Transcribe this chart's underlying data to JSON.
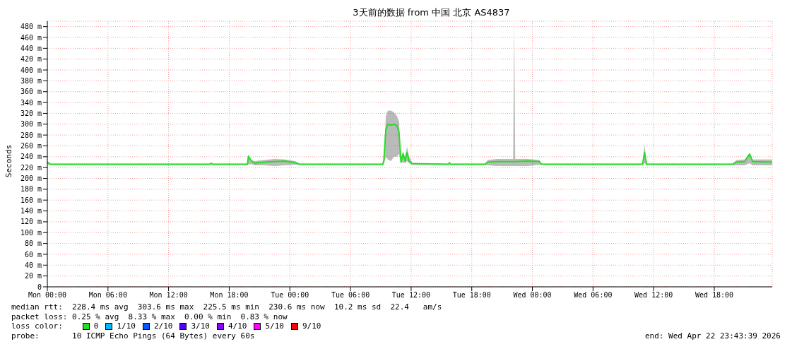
{
  "chart_data": {
    "type": "line",
    "title": "3天前的数据 from 中国 北京 AS4837",
    "ylabel": "Seconds",
    "x": [
      "2026-04-20T00:00",
      "2026-04-20T00:18",
      "2026-04-20T16:06",
      "2026-04-20T16:12",
      "2026-04-20T16:24",
      "2026-04-20T19:48",
      "2026-04-20T19:54",
      "2026-04-20T20:12",
      "2026-04-20T20:30",
      "2026-04-20T21:30",
      "2026-04-20T22:30",
      "2026-04-20T23:30",
      "2026-04-21T00:30",
      "2026-04-21T01:00",
      "2026-04-21T09:12",
      "2026-04-21T09:18",
      "2026-04-21T09:30",
      "2026-04-21T09:42",
      "2026-04-21T10:00",
      "2026-04-21T10:18",
      "2026-04-21T10:36",
      "2026-04-21T10:48",
      "2026-04-21T11:00",
      "2026-04-21T11:12",
      "2026-04-21T11:24",
      "2026-04-21T11:36",
      "2026-04-21T11:48",
      "2026-04-21T12:06",
      "2026-04-21T15:42",
      "2026-04-21T15:48",
      "2026-04-21T15:54",
      "2026-04-21T19:18",
      "2026-04-21T19:36",
      "2026-04-21T20:30",
      "2026-04-21T22:06",
      "2026-04-21T22:12",
      "2026-04-21T22:18",
      "2026-04-21T23:30",
      "2026-04-22T00:42",
      "2026-04-22T00:54",
      "2026-04-22T10:54",
      "2026-04-22T11:06",
      "2026-04-22T11:18",
      "2026-04-22T19:48",
      "2026-04-22T20:12",
      "2026-04-22T21:00",
      "2026-04-22T21:30",
      "2026-04-22T21:48",
      "2026-04-22T23:43"
    ],
    "series": [
      {
        "color": "#22e022",
        "values": [
          230,
          226,
          226,
          228,
          226,
          226,
          241,
          232,
          228,
          230,
          231,
          232,
          229,
          226,
          226,
          233,
          290,
          300,
          298,
          300,
          297,
          285,
          230,
          245,
          232,
          248,
          232,
          227,
          226,
          229,
          226,
          226,
          230,
          231,
          231,
          231,
          231,
          232,
          231,
          226,
          226,
          248,
          226,
          226,
          230,
          231,
          245,
          231,
          230
        ],
        "lower": [
          226,
          225,
          225,
          226,
          225,
          225,
          226,
          226,
          224,
          224,
          223,
          224,
          225,
          225,
          225,
          226,
          240,
          235,
          232,
          240,
          240,
          245,
          228,
          230,
          228,
          232,
          228,
          225,
          225,
          226,
          225,
          225,
          224,
          223,
          223,
          223,
          223,
          223,
          225,
          225,
          225,
          228,
          225,
          225,
          224,
          224,
          228,
          224,
          224
        ],
        "upper": [
          232,
          227,
          227,
          229,
          227,
          227,
          242,
          234,
          232,
          234,
          236,
          235,
          232,
          227,
          227,
          236,
          315,
          325,
          325,
          322,
          315,
          305,
          236,
          250,
          240,
          258,
          240,
          229,
          227,
          230,
          227,
          227,
          234,
          236,
          236,
          490,
          236,
          236,
          234,
          227,
          227,
          262,
          227,
          227,
          234,
          235,
          247,
          235,
          235
        ]
      }
    ],
    "xlim": [
      "2026-04-20T00:00",
      "2026-04-22T23:44"
    ],
    "xticks": [
      {
        "value": "2026-04-20T00:00",
        "label": "Mon 00:00"
      },
      {
        "value": "2026-04-20T06:00",
        "label": "Mon 06:00"
      },
      {
        "value": "2026-04-20T12:00",
        "label": "Mon 12:00"
      },
      {
        "value": "2026-04-20T18:00",
        "label": "Mon 18:00"
      },
      {
        "value": "2026-04-21T00:00",
        "label": "Tue 00:00"
      },
      {
        "value": "2026-04-21T06:00",
        "label": "Tue 06:00"
      },
      {
        "value": "2026-04-21T12:00",
        "label": "Tue 12:00"
      },
      {
        "value": "2026-04-21T18:00",
        "label": "Tue 18:00"
      },
      {
        "value": "2026-04-22T00:00",
        "label": "Wed 00:00"
      },
      {
        "value": "2026-04-22T06:00",
        "label": "Wed 06:00"
      },
      {
        "value": "2026-04-22T12:00",
        "label": "Wed 12:00"
      },
      {
        "value": "2026-04-22T18:00",
        "label": "Wed 18:00"
      }
    ],
    "ylim": [
      0,
      490
    ],
    "yticks": [
      0,
      {
        "value": 20,
        "label": "20 m"
      },
      {
        "value": 40,
        "label": "40 m"
      },
      {
        "value": 60,
        "label": "60 m"
      },
      {
        "value": 80,
        "label": "80 m"
      },
      {
        "value": 100,
        "label": "100 m"
      },
      {
        "value": 120,
        "label": "120 m"
      },
      {
        "value": 140,
        "label": "140 m"
      },
      {
        "value": 160,
        "label": "160 m"
      },
      {
        "value": 180,
        "label": "180 m"
      },
      {
        "value": 200,
        "label": "200 m"
      },
      {
        "value": 220,
        "label": "220 m"
      },
      {
        "value": 240,
        "label": "240 m"
      },
      {
        "value": 260,
        "label": "260 m"
      },
      {
        "value": 280,
        "label": "280 m"
      },
      {
        "value": 300,
        "label": "300 m"
      },
      {
        "value": 320,
        "label": "320 m"
      },
      {
        "value": 340,
        "label": "340 m"
      },
      {
        "value": 360,
        "label": "360 m"
      },
      {
        "value": 380,
        "label": "380 m"
      },
      {
        "value": 400,
        "label": "400 m"
      },
      {
        "value": 420,
        "label": "420 m"
      },
      {
        "value": 440,
        "label": "440 m"
      },
      {
        "value": 460,
        "label": "460 m"
      },
      {
        "value": 480,
        "label": "480 m"
      }
    ],
    "grid": true,
    "marker": "none",
    "line_style": "solid",
    "annotations": [
      "median rtt:  228.4 ms avg  303.6 ms max  225.5 ms min  230.6 ms now  10.2 ms sd  22.4   am/s",
      "packet loss: 0.25 % avg  8.33 % max  0.00 % min  0.83 % now",
      "loss color:",
      "0",
      "1/10",
      "2/10",
      "3/10",
      "4/10",
      "5/10",
      "9/10",
      "probe:       10 ICMP Echo Pings (64 Bytes) every 60s",
      "end: Wed Apr 22 23:43:39 2026"
    ]
  }
}
